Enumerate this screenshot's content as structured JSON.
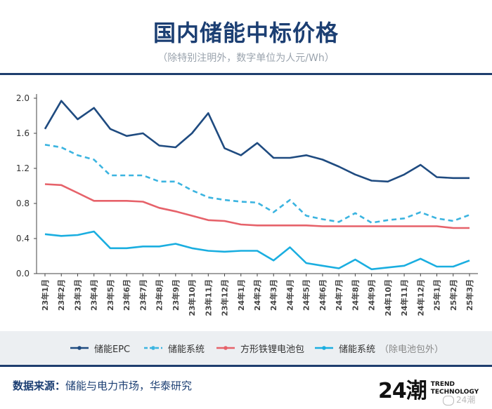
{
  "header": {
    "title": "国内储能中标价格",
    "subtitle": "（除特别注明外，数字单位为人元/Wh）"
  },
  "chart_data": {
    "type": "line",
    "title": "国内储能中标价格",
    "subtitle": "（除特别注明外，数字单位为人元/Wh）",
    "xlabel": "",
    "ylabel": "",
    "ylim": [
      0,
      2.0
    ],
    "yticks": [
      "0.0",
      "0.4",
      "0.8",
      "1.2",
      "1.6",
      "2.0"
    ],
    "grid": false,
    "legend_position": "bottom",
    "categories": [
      "23年1月",
      "23年2月",
      "23年3月",
      "23年4月",
      "23年5月",
      "23年6月",
      "23年7月",
      "23年8月",
      "23年9月",
      "23年10月",
      "23年11月",
      "23年12月",
      "24年1月",
      "24年2月",
      "24年3月",
      "24年4月",
      "24年5月",
      "24年6月",
      "24年7月",
      "24年8月",
      "24年9月",
      "24年10月",
      "24年11月",
      "24年12月",
      "25年1月",
      "25年2月",
      "25年3月"
    ],
    "series": [
      {
        "name": "储能EPC",
        "color": "#1f4b80",
        "dash": false,
        "values": [
          1.65,
          1.97,
          1.76,
          1.89,
          1.65,
          1.57,
          1.6,
          1.46,
          1.44,
          1.6,
          1.83,
          1.43,
          1.35,
          1.49,
          1.32,
          1.32,
          1.35,
          1.3,
          1.22,
          1.13,
          1.06,
          1.05,
          1.13,
          1.24,
          1.1,
          1.09,
          1.09
        ]
      },
      {
        "name": "储能系统",
        "color": "#3bb4e0",
        "dash": true,
        "values": [
          1.47,
          1.44,
          1.35,
          1.3,
          1.12,
          1.12,
          1.12,
          1.05,
          1.05,
          0.95,
          0.87,
          0.84,
          0.82,
          0.81,
          0.7,
          0.84,
          0.66,
          0.62,
          0.59,
          0.69,
          0.58,
          0.61,
          0.63,
          0.7,
          0.63,
          0.6,
          0.67
        ]
      },
      {
        "name": "方形铁锂电池包",
        "color": "#e6626a",
        "dash": false,
        "values": [
          1.02,
          1.01,
          0.92,
          0.83,
          0.83,
          0.83,
          0.82,
          0.75,
          0.71,
          0.66,
          0.61,
          0.6,
          0.56,
          0.55,
          0.55,
          0.55,
          0.55,
          0.54,
          0.54,
          0.54,
          0.54,
          0.54,
          0.54,
          0.54,
          0.54,
          0.52,
          0.52
        ]
      },
      {
        "name": "储能系统",
        "note": "（除电池包外）",
        "color": "#1aaee0",
        "dash": false,
        "values": [
          0.45,
          0.43,
          0.44,
          0.48,
          0.29,
          0.29,
          0.31,
          0.31,
          0.34,
          0.29,
          0.26,
          0.25,
          0.26,
          0.26,
          0.15,
          0.3,
          0.12,
          0.09,
          0.06,
          0.16,
          0.05,
          0.07,
          0.09,
          0.17,
          0.08,
          0.08,
          0.15
        ]
      }
    ]
  },
  "footer": {
    "source_label": "数据来源：",
    "source_text": "储能与电力市场，华泰研究",
    "logo_mark": "24潮",
    "logo_line1": "TREND",
    "logo_line2": "TECHNOLOGY",
    "watermark": "24潮"
  }
}
